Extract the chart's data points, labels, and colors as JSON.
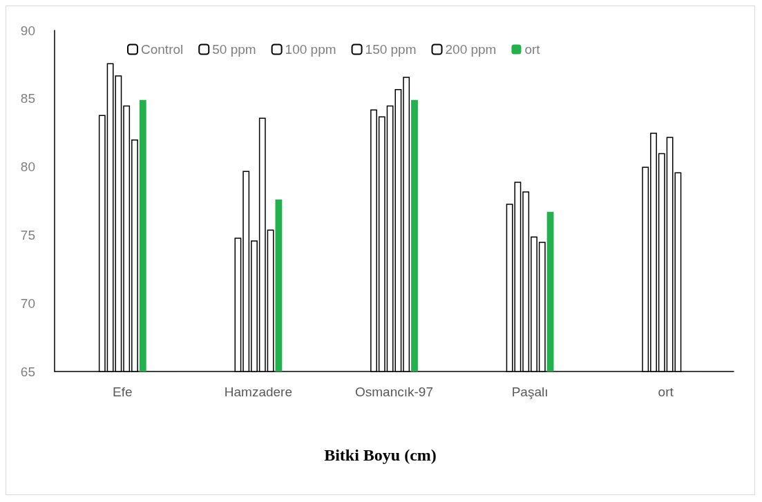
{
  "chart_data": {
    "type": "bar",
    "title": "Bitki Boyu (cm)",
    "categories": [
      "Efe",
      "Hamzadere",
      "Osmancık-97",
      "Paşalı",
      "ort"
    ],
    "series": [
      {
        "name": "Control",
        "color": "#ffffff",
        "values": [
          83.8,
          74.8,
          84.2,
          77.3,
          80.0
        ]
      },
      {
        "name": "50 ppm",
        "color": "#ffffff",
        "values": [
          87.6,
          79.7,
          83.7,
          78.9,
          82.5
        ]
      },
      {
        "name": "100 ppm",
        "color": "#ffffff",
        "values": [
          86.7,
          74.6,
          84.5,
          78.2,
          81.0
        ]
      },
      {
        "name": "150 ppm",
        "color": "#ffffff",
        "values": [
          84.5,
          83.6,
          85.7,
          74.9,
          82.2
        ]
      },
      {
        "name": "200 ppm",
        "color": "#ffffff",
        "values": [
          82.0,
          75.4,
          86.6,
          74.5,
          79.6
        ]
      },
      {
        "name": "ort",
        "color": "#23b14d",
        "values": [
          84.9,
          77.6,
          84.9,
          76.7,
          null
        ]
      }
    ],
    "ylim": [
      65,
      90
    ],
    "yticks": [
      65,
      70,
      75,
      80,
      85,
      90
    ],
    "grid": false,
    "legend": "top"
  }
}
